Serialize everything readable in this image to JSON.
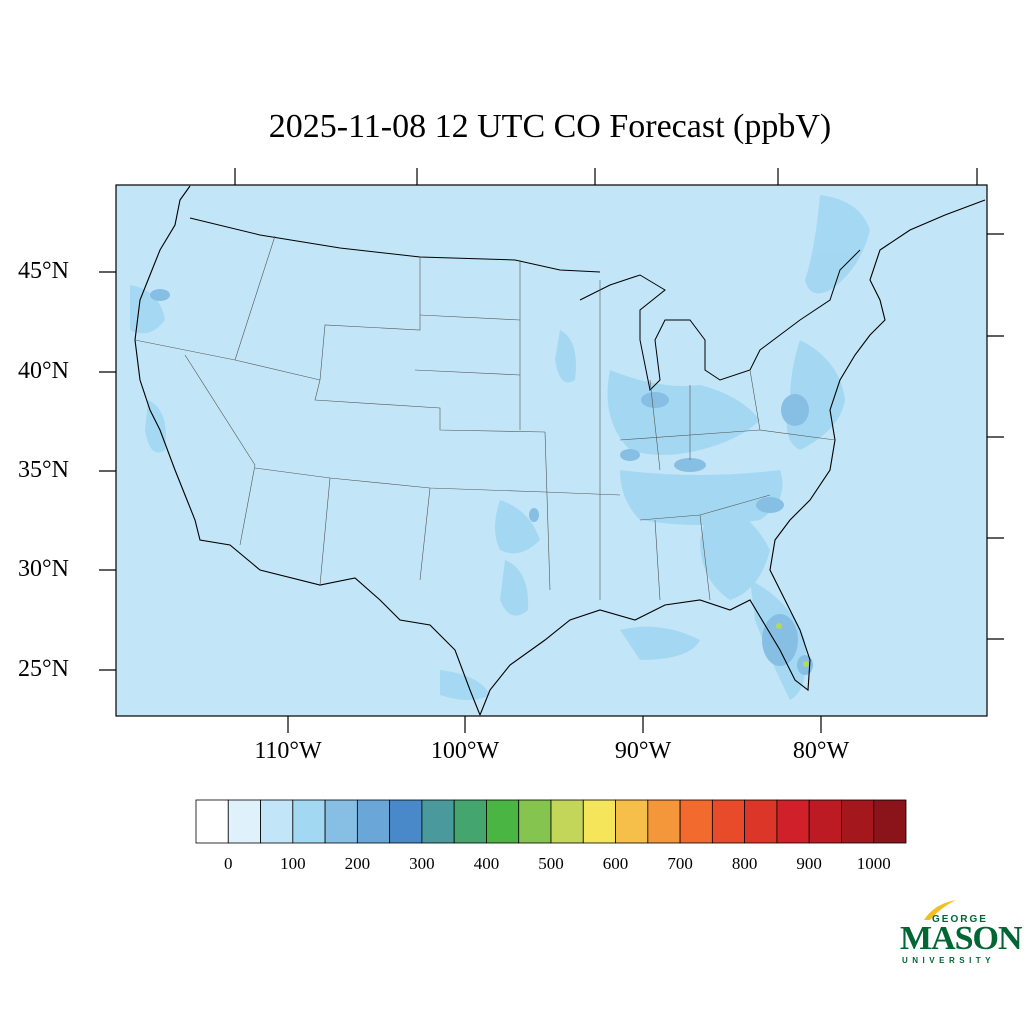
{
  "title": "2025-11-08 12 UTC CO Forecast (ppbV)",
  "map": {
    "region": "Contiguous United States",
    "latitude_labels": [
      "45°N",
      "40°N",
      "35°N",
      "30°N",
      "25°N"
    ],
    "longitude_labels": [
      "110°W",
      "100°W",
      "90°W",
      "80°W"
    ],
    "background_color": "#c2e5f7",
    "enhanced_color": "#a3d8f2",
    "hotspot_color": "#87bfe4",
    "peak_color": "#b5d95a"
  },
  "colorbar": {
    "colors": [
      "#ffffff",
      "#dff1fb",
      "#c2e5f7",
      "#a3d8f2",
      "#87bfe4",
      "#6aa6d8",
      "#4a89c9",
      "#4a9a9d",
      "#44a56e",
      "#4bb544",
      "#85c44e",
      "#c3d65a",
      "#f4e55b",
      "#f6bf4a",
      "#f4973a",
      "#f26a2e",
      "#e84b2a",
      "#dc3628",
      "#d0202a",
      "#bc1b24",
      "#a4171d",
      "#8a141a"
    ],
    "labels": [
      "0",
      "100",
      "200",
      "300",
      "400",
      "500",
      "600",
      "700",
      "800",
      "900",
      "1000"
    ]
  },
  "logo": {
    "line1": "GEORGE",
    "line2": "MASON",
    "line3": "UNIVERSITY",
    "color": "#006633",
    "accent": "#f2c01e"
  }
}
